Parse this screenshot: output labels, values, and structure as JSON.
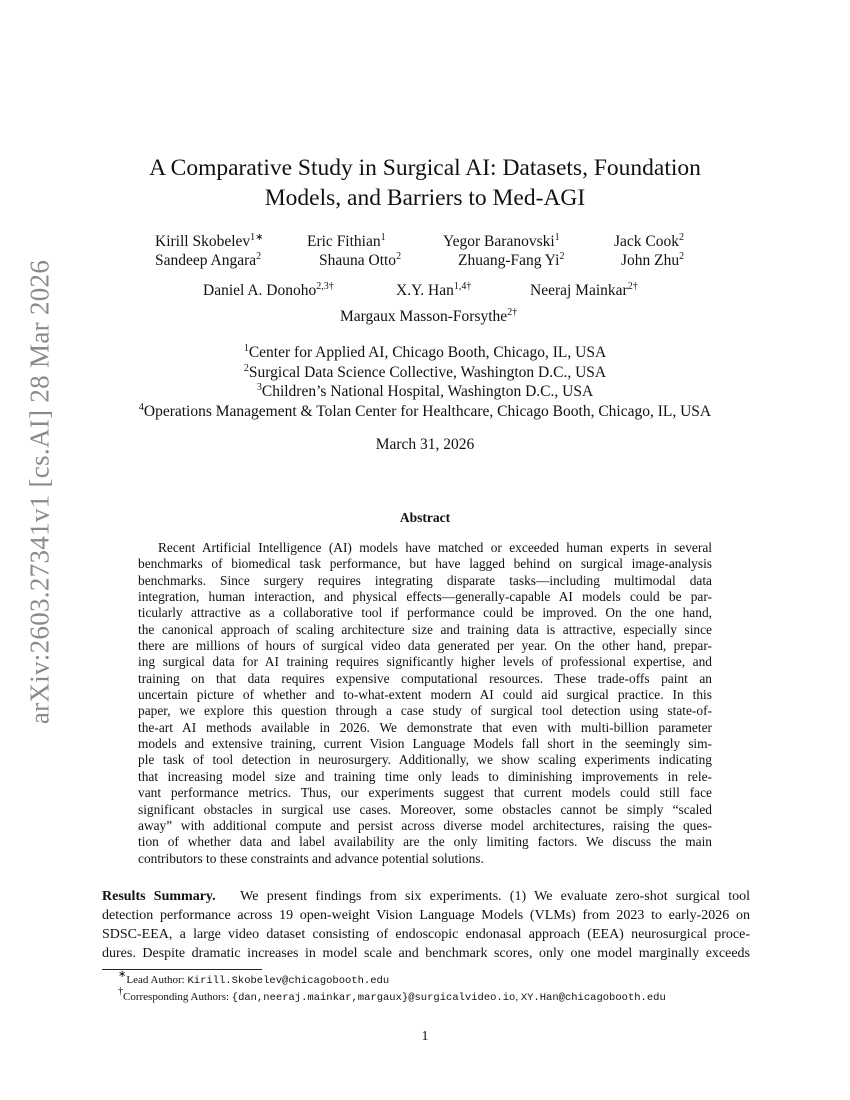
{
  "stamp": "arXiv:2603.27341v1  [cs.AI]  28 Mar 2026",
  "title": [
    "A Comparative Study in Surgical AI: Datasets, Foundation",
    "Models, and Barriers to Med-AGI"
  ],
  "authors": [
    {
      "name": "Kirill Skobelev",
      "sup": "1∗"
    },
    {
      "name": "Eric Fithian",
      "sup": "1"
    },
    {
      "name": "Yegor Baranovski",
      "sup": "1"
    },
    {
      "name": "Jack Cook",
      "sup": "2"
    },
    {
      "name": "Sandeep Angara",
      "sup": "2"
    },
    {
      "name": "Shauna Otto",
      "sup": "2"
    },
    {
      "name": "Zhuang-Fang Yi",
      "sup": "2"
    },
    {
      "name": "John Zhu",
      "sup": "2"
    },
    {
      "name": "Daniel A. Donoho",
      "sup": "2,3†"
    },
    {
      "name": "X.Y. Han",
      "sup": "1,4†"
    },
    {
      "name": "Neeraj Mainkar",
      "sup": "2†"
    },
    {
      "name": "Margaux Masson-Forsythe",
      "sup": "2†"
    }
  ],
  "affiliations": [
    {
      "sup": "1",
      "text": "Center for Applied AI, Chicago Booth, Chicago, IL, USA"
    },
    {
      "sup": "2",
      "text": "Surgical Data Science Collective, Washington D.C., USA"
    },
    {
      "sup": "3",
      "text": "Children’s National Hospital, Washington D.C., USA"
    },
    {
      "sup": "4",
      "text": "Operations Management & Tolan Center for Healthcare, Chicago Booth, Chicago, IL, USA"
    }
  ],
  "date": "March 31, 2026",
  "abstract": {
    "heading": "Abstract",
    "lines": [
      "Recent Artificial Intelligence (AI) models have matched or exceeded human experts in several",
      "benchmarks of biomedical task performance, but have lagged behind on surgical image-analysis",
      "benchmarks. Since surgery requires integrating disparate tasks—including multimodal data",
      "integration, human interaction, and physical effects—generally-capable AI models could be par-",
      "ticularly attractive as a collaborative tool if performance could be improved. On the one hand,",
      "the canonical approach of scaling architecture size and training data is attractive, especially since",
      "there are millions of hours of surgical video data generated per year. On the other hand, prepar-",
      "ing surgical data for AI training requires significantly higher levels of professional expertise, and",
      "training on that data requires expensive computational resources. These trade-offs paint an",
      "uncertain picture of whether and to-what-extent modern AI could aid surgical practice. In this",
      "paper, we explore this question through a case study of surgical tool detection using state-of-",
      "the-art AI methods available in 2026. We demonstrate that even with multi-billion parameter",
      "models and extensive training, current Vision Language Models fall short in the seemingly sim-",
      "ple task of tool detection in neurosurgery. Additionally, we show scaling experiments indicating",
      "that increasing model size and training time only leads to diminishing improvements in rele-",
      "vant performance metrics. Thus, our experiments suggest that current models could still face",
      "significant obstacles in surgical use cases. Moreover, some obstacles cannot be simply “scaled",
      "away” with additional compute and persist across diverse model architectures, raising the ques-",
      "tion of whether data and label availability are the only limiting factors. We discuss the main",
      "contributors to these constraints and advance potential solutions."
    ]
  },
  "results": {
    "heading": "Results Summary.",
    "lines": [
      "We present findings from six experiments. (1) We evaluate zero-shot surgical tool",
      "detection performance across 19 open-weight Vision Language Models (VLMs) from 2023 to early-2026 on",
      "SDSC-EEA, a large video dataset consisting of endoscopic endonasal approach (EEA) neurosurgical proce-",
      "dures. Despite dramatic increases in model scale and benchmark scores, only one model marginally exceeds"
    ]
  },
  "footnotes": [
    {
      "mark": "∗",
      "label": "Lead Author: ",
      "email": "Kirill.Skobelev@chicagobooth.edu"
    },
    {
      "mark": "†",
      "label": "Corresponding Authors: ",
      "email": "{dan,neeraj.mainkar,margaux}@surgicalvideo.io",
      "sep": ", ",
      "email2": "XY.Han@chicagobooth.edu"
    }
  ],
  "page_number": "1"
}
